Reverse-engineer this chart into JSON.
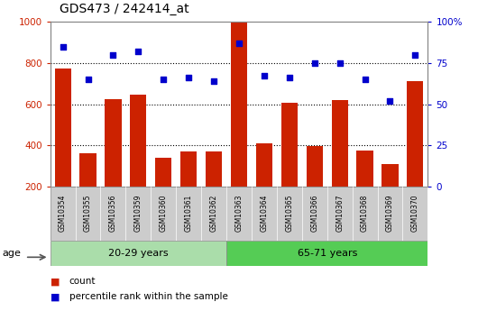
{
  "title": "GDS473 / 242414_at",
  "samples": [
    "GSM10354",
    "GSM10355",
    "GSM10356",
    "GSM10359",
    "GSM10360",
    "GSM10361",
    "GSM10362",
    "GSM10363",
    "GSM10364",
    "GSM10365",
    "GSM10366",
    "GSM10367",
    "GSM10368",
    "GSM10369",
    "GSM10370"
  ],
  "counts": [
    775,
    360,
    625,
    648,
    338,
    370,
    372,
    1000,
    410,
    605,
    398,
    620,
    375,
    308,
    710
  ],
  "percentile_ranks": [
    85,
    65,
    80,
    82,
    65,
    66,
    64,
    87,
    67,
    66,
    75,
    75,
    65,
    52,
    80
  ],
  "groups": [
    {
      "label": "20-29 years",
      "start": 0,
      "end": 7
    },
    {
      "label": "65-71 years",
      "start": 7,
      "end": 15
    }
  ],
  "group_colors": [
    "#AADDAA",
    "#55CC55"
  ],
  "ylim_left": [
    200,
    1000
  ],
  "ylim_right": [
    0,
    100
  ],
  "bar_color": "#CC2200",
  "dot_color": "#0000CC",
  "tick_color_left": "#CC2200",
  "tick_color_right": "#0000CC",
  "left_yticks": [
    200,
    400,
    600,
    800,
    1000
  ],
  "right_yticks": [
    0,
    25,
    50,
    75,
    100
  ],
  "right_yticklabels": [
    "0",
    "25",
    "50",
    "75",
    "100%"
  ],
  "dotted_grid_values": [
    400,
    600,
    800
  ],
  "age_label": "age",
  "legend_count": "count",
  "legend_percentile": "percentile rank within the sample",
  "label_bg_color": "#CCCCCC",
  "border_color": "#888888"
}
